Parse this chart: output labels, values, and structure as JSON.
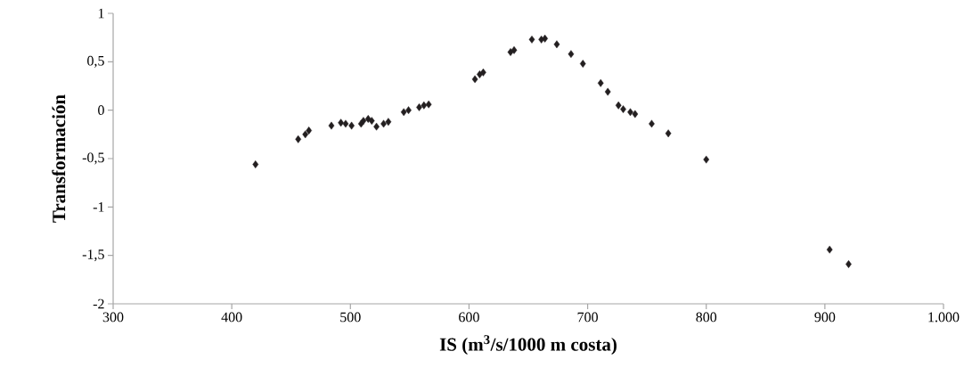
{
  "chart_data": {
    "type": "scatter",
    "xlabel": "**IS (m$^{3}$/s/1000 m costa)**",
    "ylabel": "**Transformación**",
    "x": [
      420,
      456,
      462,
      465,
      484,
      492,
      496,
      501,
      509,
      511,
      515,
      518,
      522,
      528,
      532,
      545,
      549,
      558,
      562,
      566,
      605,
      609,
      612,
      635,
      638,
      653,
      661,
      664,
      674,
      686,
      696,
      711,
      717,
      726,
      730,
      736,
      740,
      754,
      768,
      800,
      904,
      920
    ],
    "series": [
      {
        "color": "#231f20",
        "values": [
          -0.56,
          -0.3,
          -0.25,
          -0.21,
          -0.16,
          -0.13,
          -0.14,
          -0.16,
          -0.14,
          -0.11,
          -0.09,
          -0.11,
          -0.17,
          -0.14,
          -0.12,
          -0.02,
          0.0,
          0.03,
          0.05,
          0.06,
          0.32,
          0.37,
          0.39,
          0.6,
          0.62,
          0.73,
          0.73,
          0.74,
          0.68,
          0.58,
          0.48,
          0.28,
          0.19,
          0.05,
          0.01,
          -0.02,
          -0.04,
          -0.14,
          -0.24,
          -0.51,
          -1.44,
          -1.59
        ]
      }
    ],
    "xlim": [
      300,
      1000
    ],
    "xticks": [
      300,
      400,
      500,
      600,
      700,
      800,
      900,
      {
        "value": 1000,
        "label": "1.000"
      }
    ],
    "ylim": [
      -2,
      1
    ],
    "yticks": [
      -2,
      {
        "value": -1.5,
        "label": "-1,5"
      },
      -1,
      {
        "value": -0.5,
        "label": "-0,5"
      },
      0,
      {
        "value": 0.5,
        "label": "0,5"
      },
      1
    ],
    "grid": false,
    "marker": "diamond"
  }
}
